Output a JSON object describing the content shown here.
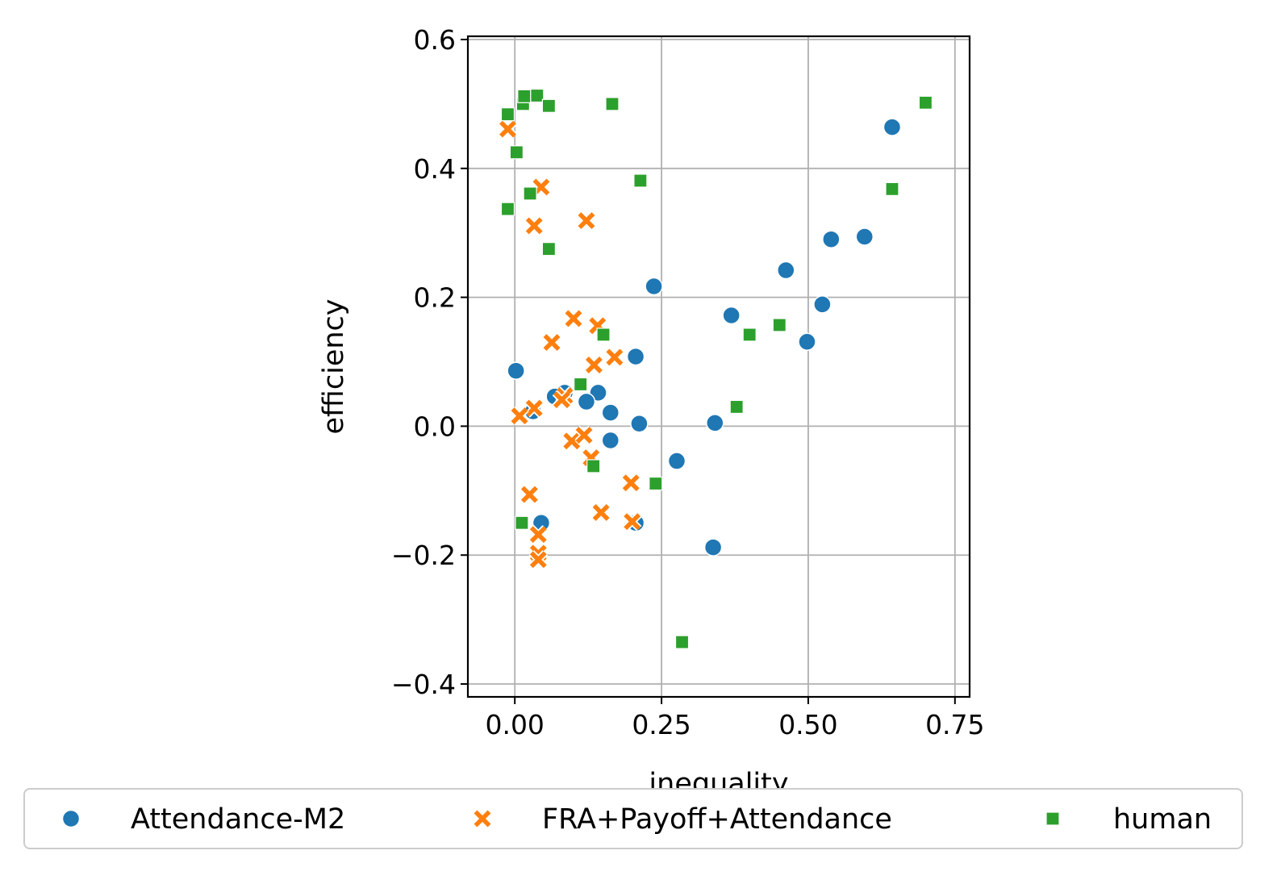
{
  "chart_data": {
    "type": "scatter",
    "title": "",
    "xlabel": "inequality",
    "ylabel": "efficiency",
    "xlim": [
      -0.08,
      0.775
    ],
    "ylim": [
      -0.42,
      0.605
    ],
    "xticks": [
      0.0,
      0.25,
      0.5,
      0.75
    ],
    "xtick_labels": [
      "0.00",
      "0.25",
      "0.50",
      "0.75"
    ],
    "yticks": [
      -0.4,
      -0.2,
      0.0,
      0.2,
      0.4,
      0.6
    ],
    "ytick_labels": [
      "−0.4",
      "−0.2",
      "0.0",
      "0.2",
      "0.4",
      "0.6"
    ],
    "grid": true,
    "legend_placement": "bottom",
    "series": [
      {
        "name": "Attendance-M2",
        "marker": "circle",
        "color": "#1f77b4",
        "points": [
          [
            0.643,
            0.464
          ],
          [
            0.596,
            0.294
          ],
          [
            0.539,
            0.29
          ],
          [
            0.462,
            0.242
          ],
          [
            0.524,
            0.189
          ],
          [
            0.498,
            0.131
          ],
          [
            0.369,
            0.172
          ],
          [
            0.237,
            0.217
          ],
          [
            0.206,
            0.108
          ],
          [
            0.002,
            0.086
          ],
          [
            0.085,
            0.052
          ],
          [
            0.068,
            0.046
          ],
          [
            0.142,
            0.052
          ],
          [
            0.122,
            0.038
          ],
          [
            0.163,
            0.021
          ],
          [
            0.031,
            0.023
          ],
          [
            0.212,
            0.004
          ],
          [
            0.341,
            0.005
          ],
          [
            0.163,
            -0.022
          ],
          [
            0.276,
            -0.054
          ],
          [
            0.045,
            -0.15
          ],
          [
            0.206,
            -0.15
          ],
          [
            0.338,
            -0.188
          ]
        ]
      },
      {
        "name": "FRA+Payoff+Attendance",
        "marker": "x",
        "color": "#ff7f0e",
        "points": [
          [
            -0.012,
            0.461
          ],
          [
            0.045,
            0.371
          ],
          [
            0.033,
            0.311
          ],
          [
            0.122,
            0.319
          ],
          [
            0.1,
            0.167
          ],
          [
            0.141,
            0.156
          ],
          [
            0.063,
            0.13
          ],
          [
            0.17,
            0.107
          ],
          [
            0.135,
            0.095
          ],
          [
            0.085,
            0.047
          ],
          [
            0.08,
            0.041
          ],
          [
            0.033,
            0.028
          ],
          [
            0.008,
            0.016
          ],
          [
            0.097,
            -0.023
          ],
          [
            0.118,
            -0.014
          ],
          [
            0.13,
            -0.049
          ],
          [
            0.198,
            -0.088
          ],
          [
            0.025,
            -0.106
          ],
          [
            0.147,
            -0.134
          ],
          [
            0.2,
            -0.148
          ],
          [
            0.04,
            -0.168
          ],
          [
            0.04,
            -0.197
          ],
          [
            0.04,
            -0.207
          ]
        ]
      },
      {
        "name": "human",
        "marker": "square",
        "color": "#2ca02c",
        "points": [
          [
            -0.012,
            0.484
          ],
          [
            0.014,
            0.5
          ],
          [
            0.016,
            0.512
          ],
          [
            0.038,
            0.513
          ],
          [
            0.058,
            0.497
          ],
          [
            0.166,
            0.5
          ],
          [
            0.7,
            0.502
          ],
          [
            0.003,
            0.425
          ],
          [
            0.214,
            0.381
          ],
          [
            0.643,
            0.368
          ],
          [
            0.026,
            0.361
          ],
          [
            -0.012,
            0.337
          ],
          [
            0.058,
            0.275
          ],
          [
            0.151,
            0.142
          ],
          [
            0.4,
            0.142
          ],
          [
            0.451,
            0.157
          ],
          [
            0.112,
            0.065
          ],
          [
            0.378,
            0.03
          ],
          [
            0.134,
            -0.062
          ],
          [
            0.24,
            -0.089
          ],
          [
            0.012,
            -0.15
          ],
          [
            0.285,
            -0.335
          ]
        ]
      }
    ]
  }
}
